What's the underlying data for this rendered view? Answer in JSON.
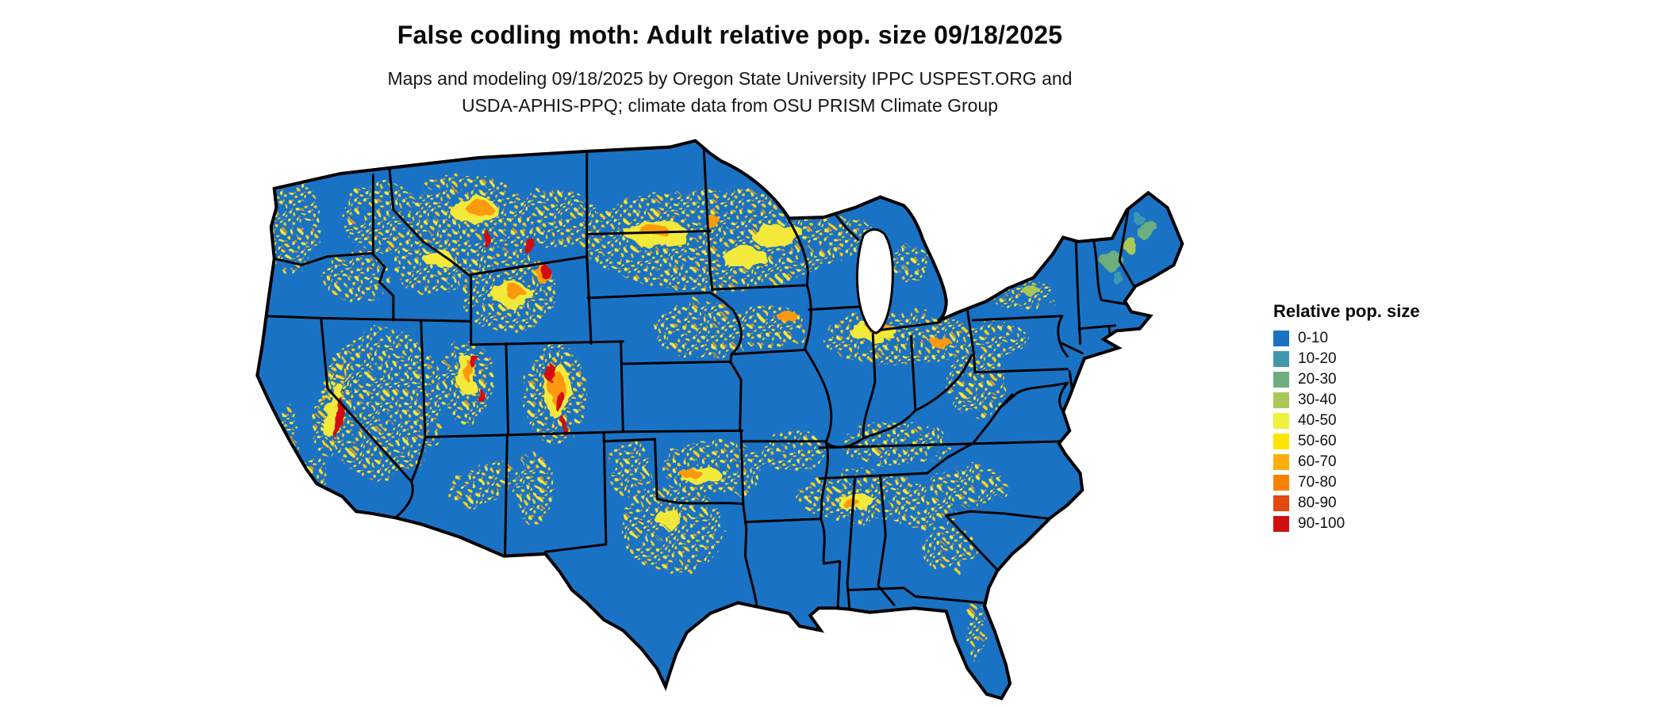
{
  "header": {
    "title": "False codling moth: Adult relative pop. size 09/18/2025",
    "subtitle_line1": "Maps and modeling 09/18/2025 by Oregon State University IPPC USPEST.ORG and",
    "subtitle_line2": "USDA-APHIS-PPQ; climate data from OSU PRISM Climate Group"
  },
  "legend": {
    "title": "Relative pop. size",
    "items": [
      {
        "label": "0-10",
        "color": "#1a72c4"
      },
      {
        "label": "10-20",
        "color": "#4198ae"
      },
      {
        "label": "20-30",
        "color": "#6cae7e"
      },
      {
        "label": "30-40",
        "color": "#a9c857"
      },
      {
        "label": "40-50",
        "color": "#eef23c"
      },
      {
        "label": "50-60",
        "color": "#ffe400"
      },
      {
        "label": "60-70",
        "color": "#fdae0d"
      },
      {
        "label": "70-80",
        "color": "#f98008"
      },
      {
        "label": "80-90",
        "color": "#e5470e"
      },
      {
        "label": "90-100",
        "color": "#d00f0f"
      }
    ]
  },
  "map": {
    "region": "Contiguous United States",
    "base_color": "#1a72c4",
    "border_color": "#000000",
    "water_color": "#ffffff"
  }
}
